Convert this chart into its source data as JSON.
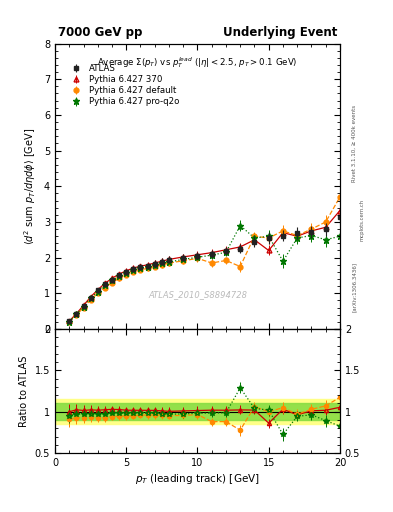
{
  "title_left": "7000 GeV pp",
  "title_right": "Underlying Event",
  "plot_title": "Average $\\Sigma(p_T)$ vs $p_T^{lead}$ ($|\\eta| < 2.5$, $p_T > 0.1$ GeV)",
  "ylabel_main": "$\\langle d^2$ sum $p_T/d\\eta d\\phi\\rangle$ [GeV]",
  "ylabel_ratio": "Ratio to ATLAS",
  "xlabel": "$p_T$ (leading track) [GeV]",
  "right_label1": "Rivet 3.1.10, ≥ 400k events",
  "right_label2": "mcplots.cern.ch",
  "right_label3": "[arXiv:1306.3436]",
  "watermark": "ATLAS_2010_S8894728",
  "ylim_main": [
    0,
    8
  ],
  "ylim_ratio": [
    0.5,
    2.0
  ],
  "xlim": [
    0,
    20
  ],
  "atlas_x": [
    1.0,
    1.5,
    2.0,
    2.5,
    3.0,
    3.5,
    4.0,
    4.5,
    5.0,
    5.5,
    6.0,
    6.5,
    7.0,
    7.5,
    8.0,
    9.0,
    10.0,
    11.0,
    12.0,
    13.0,
    14.0,
    15.0,
    16.0,
    17.0,
    18.0,
    19.0,
    20.0
  ],
  "atlas_y": [
    0.22,
    0.42,
    0.65,
    0.88,
    1.08,
    1.25,
    1.38,
    1.5,
    1.6,
    1.68,
    1.73,
    1.77,
    1.82,
    1.88,
    1.94,
    2.0,
    2.05,
    2.1,
    2.18,
    2.25,
    2.45,
    2.55,
    2.62,
    2.7,
    2.72,
    2.8,
    3.15
  ],
  "atlas_yerr": [
    0.03,
    0.04,
    0.05,
    0.06,
    0.07,
    0.07,
    0.08,
    0.08,
    0.09,
    0.09,
    0.09,
    0.09,
    0.1,
    0.1,
    0.1,
    0.1,
    0.11,
    0.11,
    0.12,
    0.13,
    0.15,
    0.16,
    0.16,
    0.17,
    0.17,
    0.18,
    0.22
  ],
  "py370_x": [
    1.0,
    1.5,
    2.0,
    2.5,
    3.0,
    3.5,
    4.0,
    4.5,
    5.0,
    5.5,
    6.0,
    6.5,
    7.0,
    7.5,
    8.0,
    9.0,
    10.0,
    11.0,
    12.0,
    13.0,
    14.0,
    15.0,
    16.0,
    17.0,
    18.0,
    19.0,
    20.0
  ],
  "py370_y": [
    0.22,
    0.43,
    0.66,
    0.9,
    1.1,
    1.28,
    1.42,
    1.54,
    1.63,
    1.71,
    1.76,
    1.8,
    1.85,
    1.9,
    1.95,
    2.02,
    2.08,
    2.14,
    2.22,
    2.3,
    2.5,
    2.2,
    2.7,
    2.6,
    2.75,
    2.85,
    3.32
  ],
  "py370_yerr": [
    0.02,
    0.03,
    0.04,
    0.05,
    0.05,
    0.06,
    0.06,
    0.07,
    0.07,
    0.07,
    0.07,
    0.08,
    0.08,
    0.08,
    0.09,
    0.09,
    0.1,
    0.1,
    0.11,
    0.12,
    0.13,
    0.14,
    0.15,
    0.15,
    0.16,
    0.17,
    0.2
  ],
  "pydef_x": [
    1.0,
    1.5,
    2.0,
    2.5,
    3.0,
    3.5,
    4.0,
    4.5,
    5.0,
    5.5,
    6.0,
    6.5,
    7.0,
    7.5,
    8.0,
    9.0,
    10.0,
    11.0,
    12.0,
    13.0,
    14.0,
    15.0,
    16.0,
    17.0,
    18.0,
    19.0,
    20.0
  ],
  "pydef_y": [
    0.2,
    0.39,
    0.6,
    0.82,
    1.0,
    1.16,
    1.3,
    1.42,
    1.52,
    1.6,
    1.66,
    1.7,
    1.75,
    1.8,
    1.85,
    1.91,
    1.98,
    1.85,
    1.92,
    1.75,
    2.6,
    2.55,
    2.75,
    2.62,
    2.8,
    3.0,
    3.7
  ],
  "pydef_yerr": [
    0.02,
    0.03,
    0.04,
    0.05,
    0.05,
    0.06,
    0.06,
    0.07,
    0.07,
    0.07,
    0.07,
    0.08,
    0.08,
    0.08,
    0.09,
    0.09,
    0.1,
    0.1,
    0.11,
    0.15,
    0.13,
    0.16,
    0.17,
    0.16,
    0.18,
    0.2,
    0.25
  ],
  "pyproq2o_x": [
    1.0,
    1.5,
    2.0,
    2.5,
    3.0,
    3.5,
    4.0,
    4.5,
    5.0,
    5.5,
    6.0,
    6.5,
    7.0,
    7.5,
    8.0,
    9.0,
    10.0,
    11.0,
    12.0,
    13.0,
    14.0,
    15.0,
    16.0,
    17.0,
    18.0,
    19.0,
    20.0
  ],
  "pyproq2o_y": [
    0.21,
    0.41,
    0.63,
    0.86,
    1.05,
    1.22,
    1.36,
    1.48,
    1.57,
    1.65,
    1.7,
    1.74,
    1.79,
    1.84,
    1.88,
    1.95,
    2.01,
    2.07,
    2.15,
    2.9,
    2.55,
    2.6,
    1.9,
    2.55,
    2.62,
    2.5,
    2.6
  ],
  "pyproq2o_yerr": [
    0.02,
    0.03,
    0.04,
    0.05,
    0.05,
    0.06,
    0.06,
    0.07,
    0.07,
    0.07,
    0.07,
    0.08,
    0.08,
    0.08,
    0.09,
    0.09,
    0.1,
    0.1,
    0.11,
    0.15,
    0.14,
    0.17,
    0.2,
    0.16,
    0.18,
    0.2,
    0.22
  ],
  "color_atlas": "#222222",
  "color_py370": "#cc0000",
  "color_pydef": "#ff8800",
  "color_pyproq2o": "#007700",
  "band_yellow": [
    0.85,
    1.15
  ],
  "band_green": [
    0.9,
    1.1
  ]
}
